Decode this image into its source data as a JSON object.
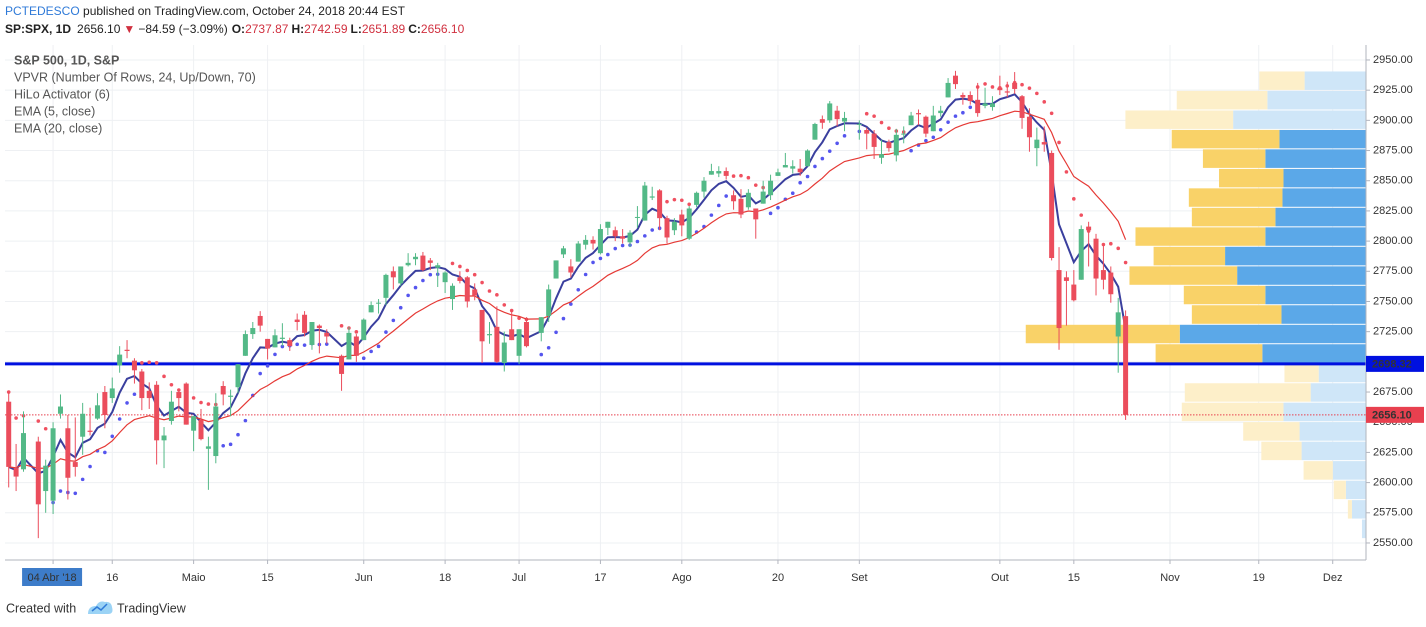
{
  "header": {
    "author": "PCTEDESCO",
    "published": " published on TradingView.com, October 24, 2018 20:44 EST"
  },
  "quote": {
    "symbol": "SP:SPX, 1D",
    "last": "2656.10",
    "arrow": "▼",
    "change": "−84.59 (−3.09%)",
    "o_label": "O:",
    "open": "2737.87",
    "h_label": "H:",
    "high": "2742.59",
    "l_label": "L:",
    "low": "2651.89",
    "c_label": "C:",
    "close": "2656.10"
  },
  "footer": {
    "text": "Created with",
    "brand": "TradingView"
  },
  "chart_data": {
    "type": "candlestick",
    "title": "S&P 500, 1D, S&P",
    "up_color": "#53b987",
    "down_color": "#eb4d5c",
    "grid": true,
    "ylim": [
      2535.9,
      2962.4
    ],
    "yticks": [
      {
        "value": 2550,
        "label": "2550.00"
      },
      {
        "value": 2575,
        "label": "2575.00"
      },
      {
        "value": 2600,
        "label": "2600.00"
      },
      {
        "value": 2625,
        "label": "2625.00"
      },
      {
        "value": 2650,
        "label": "2650.00"
      },
      {
        "value": 2675,
        "label": "2675.00"
      },
      {
        "value": 2700,
        "label": "2700.00"
      },
      {
        "value": 2725,
        "label": "2725.00"
      },
      {
        "value": 2750,
        "label": "2750.00"
      },
      {
        "value": 2775,
        "label": "2775.00"
      },
      {
        "value": 2800,
        "label": "2800.00"
      },
      {
        "value": 2825,
        "label": "2825.00"
      },
      {
        "value": 2850,
        "label": "2850.00"
      },
      {
        "value": 2875,
        "label": "2875.00"
      },
      {
        "value": 2900,
        "label": "2900.00"
      },
      {
        "value": 2925,
        "label": "2925.00"
      },
      {
        "value": 2950,
        "label": "2950.00"
      }
    ],
    "xlim": [
      "2018-03-27",
      "2018-12-07"
    ],
    "xticks": [
      {
        "value": "2018-04-04",
        "label": "04 Abr '18",
        "highlight": true
      },
      {
        "value": "2018-04-16",
        "label": "16"
      },
      {
        "value": "2018-05-01",
        "label": "Maio"
      },
      {
        "value": "2018-05-15",
        "label": "15"
      },
      {
        "value": "2018-06-01",
        "label": "Jun"
      },
      {
        "value": "2018-06-18",
        "label": "18"
      },
      {
        "value": "2018-07-02",
        "label": "Jul"
      },
      {
        "value": "2018-07-17",
        "label": "17"
      },
      {
        "value": "2018-08-01",
        "label": "Ago"
      },
      {
        "value": "2018-08-20",
        "label": "20"
      },
      {
        "value": "2018-09-04",
        "label": "Set"
      },
      {
        "value": "2018-10-01",
        "label": "Out"
      },
      {
        "value": "2018-10-15",
        "label": "15"
      },
      {
        "value": "2018-11-01",
        "label": "Nov"
      },
      {
        "value": "2018-11-19",
        "label": "19"
      },
      {
        "value": "2018-12-03",
        "label": "Dez"
      }
    ],
    "indicators": [
      {
        "name": "VPVR (Number Of Rows, 24, Up/Down, 70)",
        "kind": "vpvr"
      },
      {
        "name": "HiLo Activator (6)",
        "kind": "hilo",
        "period": 6,
        "color_up": "#5555ee",
        "color_down": "#f05060"
      },
      {
        "name": "EMA (5, close)",
        "kind": "ema",
        "period": 5,
        "color": "#3a3f9e"
      },
      {
        "name": "EMA (20, close)",
        "kind": "ema",
        "period": 20,
        "color": "#e53935"
      }
    ],
    "profile": {
      "bins": [
        2553.6,
        2569.8,
        2585.9,
        2602.0,
        2618.2,
        2634.3,
        2650.5,
        2666.6,
        2682.7,
        2698.9,
        2715.0,
        2731.1,
        2747.3,
        2763.4,
        2779.5,
        2795.7,
        2811.8,
        2828.0,
        2844.1,
        2860.2,
        2876.4,
        2892.5,
        2908.6,
        2924.8,
        2940.9
      ],
      "up": [
        4,
        14,
        20,
        33,
        64,
        66,
        82,
        55,
        47,
        103,
        185,
        84,
        100,
        128,
        140,
        100,
        90,
        83,
        82,
        100,
        86,
        132,
        98,
        61
      ],
      "down": [
        0,
        4,
        12,
        29,
        40,
        56,
        101,
        125,
        34,
        106,
        153,
        89,
        81,
        107,
        71,
        129,
        83,
        93,
        64,
        62,
        107,
        107,
        90,
        45
      ],
      "value_area": [
        false,
        false,
        false,
        false,
        false,
        false,
        false,
        false,
        false,
        true,
        true,
        true,
        true,
        true,
        true,
        true,
        true,
        true,
        true,
        true,
        true,
        false,
        false,
        false
      ],
      "colors": {
        "up": "#5ba8e8",
        "down": "#f9d268",
        "up_light": "#cfe6f8",
        "down_light": "#fdefc9"
      }
    },
    "price_lines": [
      {
        "value": 2698.32,
        "label": "2698.32",
        "color": "#0010e0",
        "style": "solid"
      },
      {
        "value": 2656.1,
        "label": "2656.10",
        "color": "#e8404f",
        "style": "dotted"
      }
    ],
    "x": [
      "2018-03-27",
      "2018-03-28",
      "2018-03-29",
      "2018-04-02",
      "2018-04-03",
      "2018-04-04",
      "2018-04-05",
      "2018-04-06",
      "2018-04-09",
      "2018-04-10",
      "2018-04-11",
      "2018-04-12",
      "2018-04-13",
      "2018-04-16",
      "2018-04-17",
      "2018-04-18",
      "2018-04-19",
      "2018-04-20",
      "2018-04-23",
      "2018-04-24",
      "2018-04-25",
      "2018-04-26",
      "2018-04-27",
      "2018-04-30",
      "2018-05-01",
      "2018-05-02",
      "2018-05-03",
      "2018-05-04",
      "2018-05-07",
      "2018-05-08",
      "2018-05-09",
      "2018-05-10",
      "2018-05-11",
      "2018-05-14",
      "2018-05-15",
      "2018-05-16",
      "2018-05-17",
      "2018-05-18",
      "2018-05-21",
      "2018-05-22",
      "2018-05-23",
      "2018-05-24",
      "2018-05-25",
      "2018-05-29",
      "2018-05-30",
      "2018-05-31",
      "2018-06-01",
      "2018-06-04",
      "2018-06-05",
      "2018-06-06",
      "2018-06-07",
      "2018-06-08",
      "2018-06-11",
      "2018-06-12",
      "2018-06-13",
      "2018-06-14",
      "2018-06-15",
      "2018-06-18",
      "2018-06-19",
      "2018-06-20",
      "2018-06-21",
      "2018-06-22",
      "2018-06-25",
      "2018-06-26",
      "2018-06-27",
      "2018-06-28",
      "2018-06-29",
      "2018-07-02",
      "2018-07-03",
      "2018-07-05",
      "2018-07-06",
      "2018-07-09",
      "2018-07-10",
      "2018-07-11",
      "2018-07-12",
      "2018-07-13",
      "2018-07-16",
      "2018-07-17",
      "2018-07-18",
      "2018-07-19",
      "2018-07-20",
      "2018-07-23",
      "2018-07-24",
      "2018-07-25",
      "2018-07-26",
      "2018-07-27",
      "2018-07-30",
      "2018-07-31",
      "2018-08-01",
      "2018-08-02",
      "2018-08-03",
      "2018-08-06",
      "2018-08-07",
      "2018-08-08",
      "2018-08-09",
      "2018-08-10",
      "2018-08-13",
      "2018-08-14",
      "2018-08-15",
      "2018-08-16",
      "2018-08-17",
      "2018-08-20",
      "2018-08-21",
      "2018-08-22",
      "2018-08-23",
      "2018-08-24",
      "2018-08-27",
      "2018-08-28",
      "2018-08-29",
      "2018-08-30",
      "2018-08-31",
      "2018-09-04",
      "2018-09-05",
      "2018-09-06",
      "2018-09-07",
      "2018-09-10",
      "2018-09-11",
      "2018-09-12",
      "2018-09-13",
      "2018-09-14",
      "2018-09-17",
      "2018-09-18",
      "2018-09-19",
      "2018-09-20",
      "2018-09-21",
      "2018-09-24",
      "2018-09-25",
      "2018-09-26",
      "2018-09-27",
      "2018-09-28",
      "2018-10-01",
      "2018-10-02",
      "2018-10-03",
      "2018-10-04",
      "2018-10-05",
      "2018-10-08",
      "2018-10-09",
      "2018-10-10",
      "2018-10-11",
      "2018-10-12",
      "2018-10-15",
      "2018-10-16",
      "2018-10-17",
      "2018-10-18",
      "2018-10-19",
      "2018-10-22",
      "2018-10-23",
      "2018-10-24"
    ],
    "candles": [
      [
        2667,
        2675,
        2596,
        2613
      ],
      [
        2612,
        2632,
        2593,
        2605
      ],
      [
        2611,
        2659,
        2609,
        2641
      ],
      [
        2634,
        2638,
        2554,
        2582
      ],
      [
        2593,
        2619,
        2575,
        2614
      ],
      [
        2585,
        2650,
        2574,
        2645
      ],
      [
        2657,
        2673,
        2653,
        2663
      ],
      [
        2645,
        2656,
        2586,
        2604
      ],
      [
        2617,
        2654,
        2605,
        2613
      ],
      [
        2638,
        2666,
        2623,
        2657
      ],
      [
        2643,
        2662,
        2639,
        2642
      ],
      [
        2653,
        2674,
        2652,
        2664
      ],
      [
        2675,
        2680,
        2645,
        2656
      ],
      [
        2670,
        2687,
        2666,
        2678
      ],
      [
        2697,
        2713,
        2691,
        2706
      ],
      [
        2710,
        2718,
        2703,
        2709
      ],
      [
        2701,
        2703,
        2682,
        2693
      ],
      [
        2692,
        2694,
        2660,
        2670
      ],
      [
        2676,
        2683,
        2661,
        2670
      ],
      [
        2681,
        2684,
        2615,
        2635
      ],
      [
        2635,
        2646,
        2612,
        2639
      ],
      [
        2651,
        2676,
        2648,
        2667
      ],
      [
        2675,
        2677,
        2659,
        2670
      ],
      [
        2682,
        2683,
        2648,
        2648
      ],
      [
        2643,
        2655,
        2626,
        2655
      ],
      [
        2652,
        2661,
        2635,
        2636
      ],
      [
        2628,
        2638,
        2594,
        2630
      ],
      [
        2622,
        2674,
        2616,
        2663
      ],
      [
        2680,
        2684,
        2664,
        2673
      ],
      [
        2671,
        2677,
        2655,
        2672
      ],
      [
        2679,
        2698,
        2674,
        2698
      ],
      [
        2705,
        2726,
        2705,
        2723
      ],
      [
        2723,
        2733,
        2719,
        2728
      ],
      [
        2738,
        2742,
        2725,
        2730
      ],
      [
        2719,
        2719,
        2702,
        2711
      ],
      [
        2712,
        2727,
        2712,
        2722
      ],
      [
        2719,
        2732,
        2713,
        2720
      ],
      [
        2718,
        2720,
        2709,
        2713
      ],
      [
        2735,
        2740,
        2726,
        2733
      ],
      [
        2739,
        2742,
        2721,
        2724
      ],
      [
        2714,
        2733,
        2710,
        2733
      ],
      [
        2730,
        2731,
        2707,
        2728
      ],
      [
        2724,
        2727,
        2715,
        2721
      ],
      [
        2705,
        2706,
        2676,
        2690
      ],
      [
        2702,
        2729,
        2702,
        2724
      ],
      [
        2721,
        2723,
        2700,
        2705
      ],
      [
        2718,
        2736,
        2718,
        2735
      ],
      [
        2741,
        2750,
        2741,
        2747
      ],
      [
        2749,
        2752,
        2740,
        2749
      ],
      [
        2753,
        2773,
        2747,
        2772
      ],
      [
        2775,
        2779,
        2760,
        2770
      ],
      [
        2765,
        2779,
        2763,
        2779
      ],
      [
        2780,
        2790,
        2779,
        2782
      ],
      [
        2785,
        2790,
        2780,
        2787
      ],
      [
        2788,
        2791,
        2775,
        2776
      ],
      [
        2784,
        2786,
        2776,
        2782
      ],
      [
        2778,
        2782,
        2762,
        2780
      ],
      [
        2766,
        2775,
        2757,
        2774
      ],
      [
        2752,
        2765,
        2743,
        2763
      ],
      [
        2770,
        2775,
        2765,
        2767
      ],
      [
        2770,
        2771,
        2745,
        2750
      ],
      [
        2760,
        2765,
        2751,
        2755
      ],
      [
        2743,
        2743,
        2699,
        2717
      ],
      [
        2722,
        2733,
        2715,
        2723
      ],
      [
        2729,
        2746,
        2699,
        2700
      ],
      [
        2699,
        2725,
        2692,
        2716
      ],
      [
        2727,
        2743,
        2718,
        2718
      ],
      [
        2705,
        2727,
        2698,
        2727
      ],
      [
        2733,
        2737,
        2712,
        2713
      ],
      [
        2724,
        2737,
        2717,
        2737
      ],
      [
        2738,
        2764,
        2733,
        2760
      ],
      [
        2769,
        2784,
        2769,
        2784
      ],
      [
        2789,
        2796,
        2786,
        2794
      ],
      [
        2779,
        2785,
        2770,
        2774
      ],
      [
        2783,
        2800,
        2783,
        2798
      ],
      [
        2797,
        2805,
        2793,
        2801
      ],
      [
        2801,
        2804,
        2793,
        2798
      ],
      [
        2790,
        2814,
        2789,
        2810
      ],
      [
        2811,
        2816,
        2805,
        2816
      ],
      [
        2809,
        2812,
        2800,
        2804
      ],
      [
        2804,
        2810,
        2798,
        2802
      ],
      [
        2799,
        2809,
        2795,
        2807
      ],
      [
        2820,
        2829,
        2811,
        2820
      ],
      [
        2817,
        2849,
        2817,
        2846
      ],
      [
        2836,
        2845,
        2834,
        2837
      ],
      [
        2842,
        2843,
        2809,
        2819
      ],
      [
        2819,
        2821,
        2798,
        2803
      ],
      [
        2809,
        2819,
        2805,
        2816
      ],
      [
        2822,
        2826,
        2804,
        2813
      ],
      [
        2802,
        2829,
        2801,
        2827
      ],
      [
        2830,
        2841,
        2828,
        2840
      ],
      [
        2841,
        2853,
        2836,
        2850
      ],
      [
        2855,
        2864,
        2855,
        2858
      ],
      [
        2856,
        2862,
        2853,
        2858
      ],
      [
        2858,
        2861,
        2851,
        2854
      ],
      [
        2838,
        2842,
        2826,
        2833
      ],
      [
        2835,
        2843,
        2819,
        2822
      ],
      [
        2828,
        2843,
        2826,
        2840
      ],
      [
        2827,
        2827,
        2802,
        2818
      ],
      [
        2831,
        2850,
        2831,
        2841
      ],
      [
        2838,
        2855,
        2834,
        2850
      ],
      [
        2854,
        2860,
        2854,
        2857
      ],
      [
        2861,
        2873,
        2861,
        2863
      ],
      [
        2860,
        2867,
        2856,
        2862
      ],
      [
        2860,
        2868,
        2854,
        2857
      ],
      [
        2862,
        2876,
        2862,
        2875
      ],
      [
        2884,
        2898,
        2884,
        2897
      ],
      [
        2901,
        2904,
        2893,
        2898
      ],
      [
        2900,
        2916,
        2898,
        2914
      ],
      [
        2908,
        2912,
        2895,
        2901
      ],
      [
        2899,
        2907,
        2891,
        2902
      ],
      [
        2897,
        2900,
        2884,
        2897
      ],
      [
        2892,
        2894,
        2876,
        2889
      ],
      [
        2889,
        2892,
        2868,
        2878
      ],
      [
        2869,
        2884,
        2864,
        2872
      ],
      [
        2882,
        2884,
        2874,
        2877
      ],
      [
        2871,
        2893,
        2866,
        2888
      ],
      [
        2889,
        2895,
        2881,
        2889
      ],
      [
        2896,
        2907,
        2896,
        2904
      ],
      [
        2906,
        2909,
        2896,
        2905
      ],
      [
        2903,
        2904,
        2886,
        2889
      ],
      [
        2891,
        2912,
        2891,
        2904
      ],
      [
        2906,
        2912,
        2903,
        2908
      ],
      [
        2919,
        2935,
        2919,
        2931
      ],
      [
        2937,
        2941,
        2926,
        2930
      ],
      [
        2921,
        2923,
        2913,
        2919
      ],
      [
        2921,
        2924,
        2913,
        2916
      ],
      [
        2917,
        2931,
        2903,
        2906
      ],
      [
        2912,
        2927,
        2910,
        2914
      ],
      [
        2911,
        2920,
        2908,
        2914
      ],
      [
        2927,
        2937,
        2921,
        2925
      ],
      [
        2924,
        2932,
        2919,
        2923
      ],
      [
        2931,
        2940,
        2922,
        2926
      ],
      [
        2920,
        2921,
        2893,
        2902
      ],
      [
        2903,
        2910,
        2874,
        2886
      ],
      [
        2877,
        2894,
        2862,
        2884
      ],
      [
        2882,
        2895,
        2874,
        2880
      ],
      [
        2873,
        2875,
        2784,
        2786
      ],
      [
        2776,
        2795,
        2710,
        2728
      ],
      [
        2770,
        2775,
        2730,
        2767
      ],
      [
        2764,
        2776,
        2750,
        2751
      ],
      [
        2768,
        2813,
        2768,
        2810
      ],
      [
        2812,
        2816,
        2779,
        2809
      ],
      [
        2802,
        2806,
        2755,
        2769
      ],
      [
        2776,
        2797,
        2760,
        2768
      ],
      [
        2774,
        2779,
        2749,
        2756
      ],
      [
        2721,
        2753,
        2691,
        2741
      ],
      [
        2737.87,
        2742.59,
        2651.89,
        2656.1
      ]
    ]
  }
}
